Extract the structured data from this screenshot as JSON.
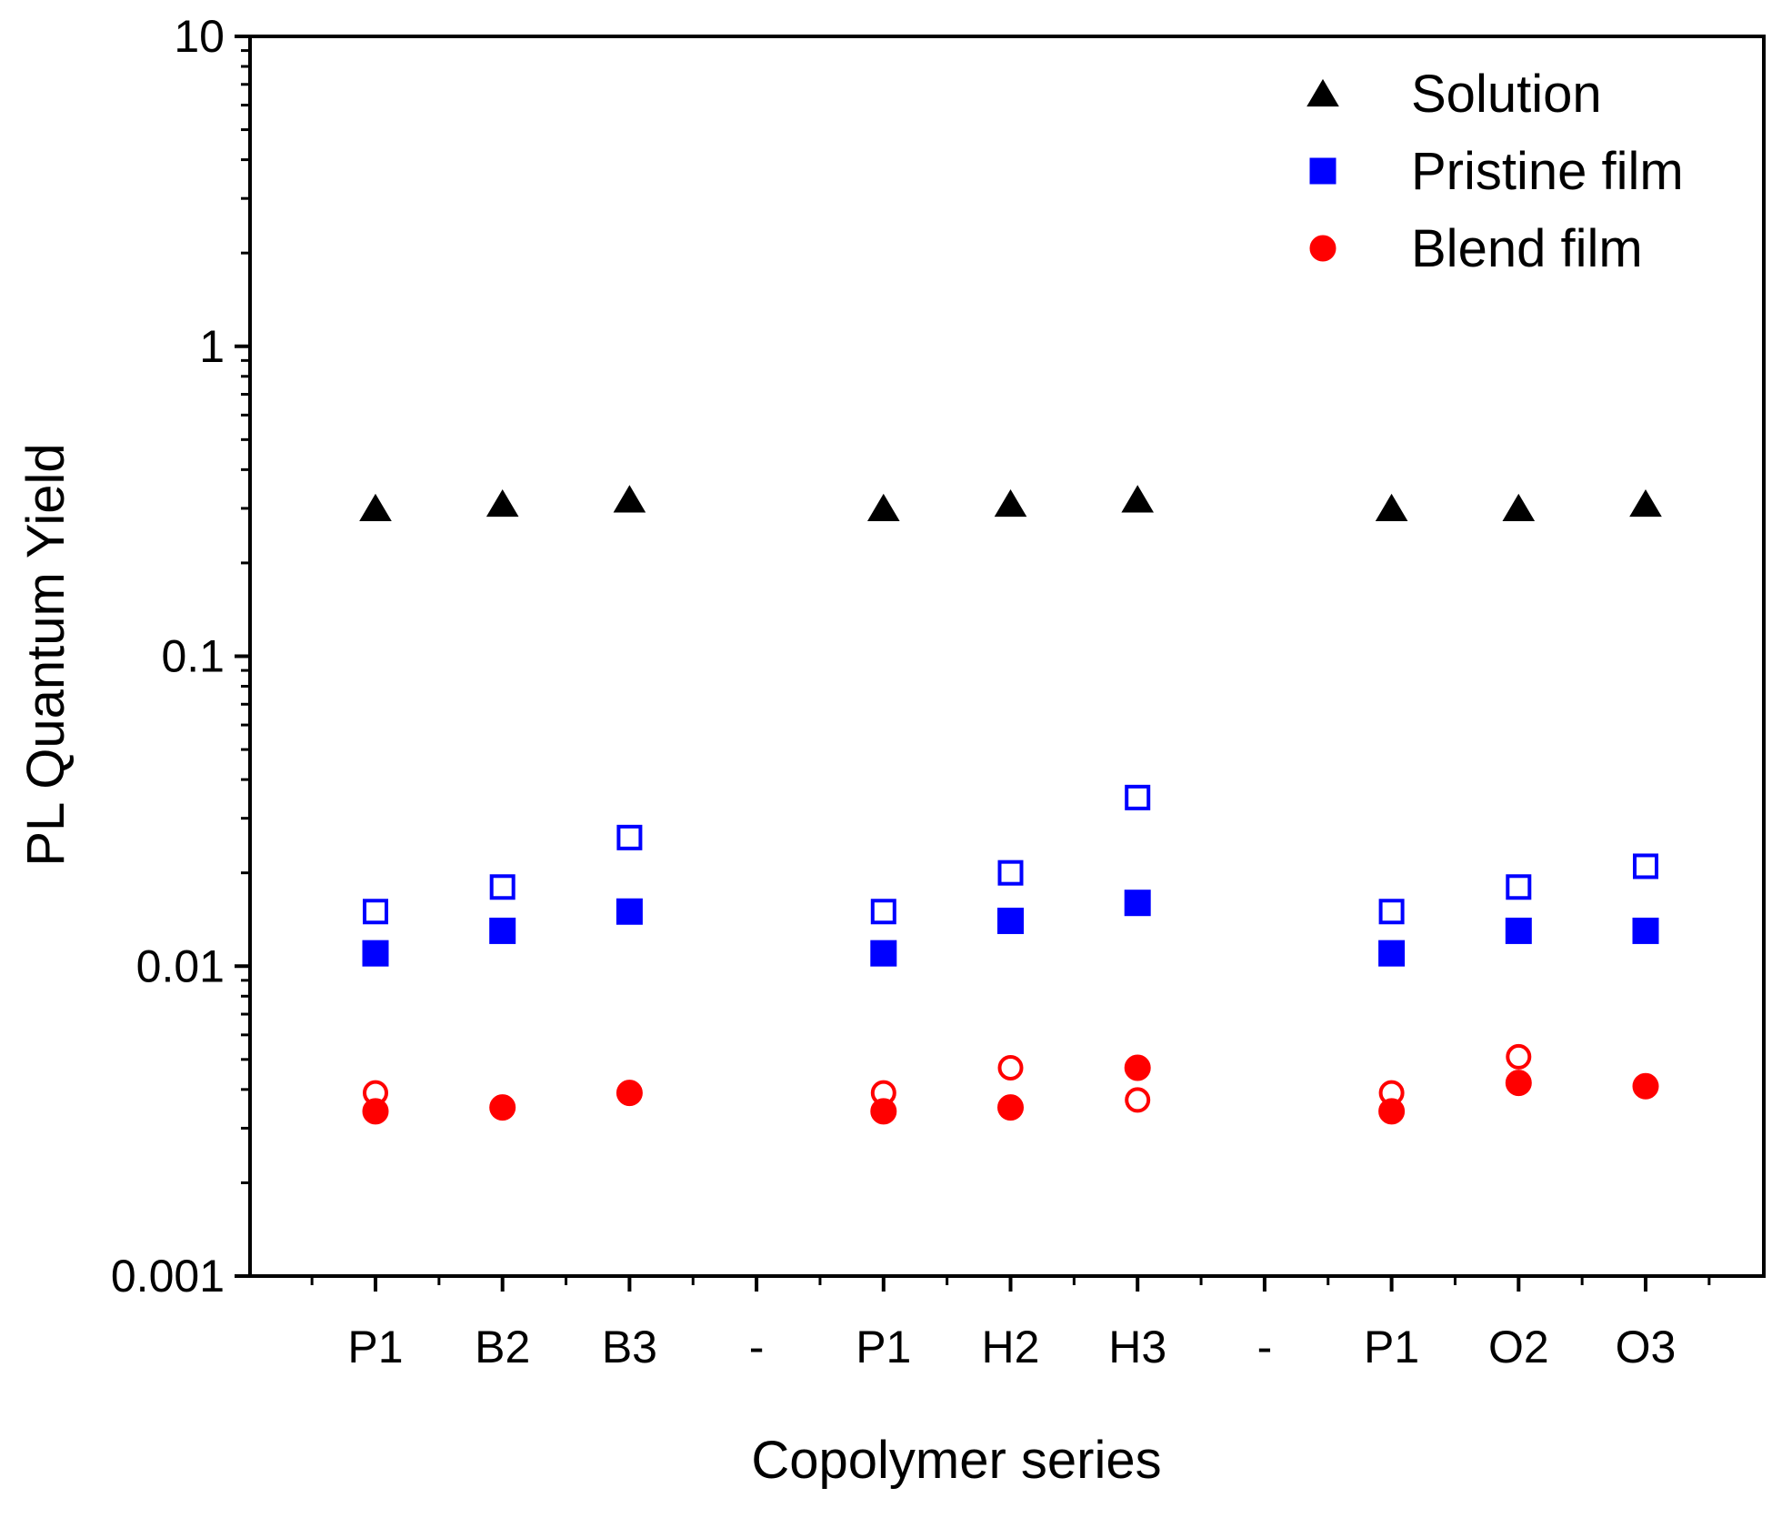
{
  "chart_data": {
    "type": "scatter",
    "title": "",
    "xlabel": "Copolymer series",
    "ylabel": "PL Quantum Yield",
    "yscale": "log",
    "ylim": [
      0.001,
      10
    ],
    "yticks": [
      {
        "value": 10,
        "label": "10"
      },
      {
        "value": 1,
        "label": "1"
      },
      {
        "value": 0.1,
        "label": "0.1"
      },
      {
        "value": 0.01,
        "label": "0.01"
      },
      {
        "value": 0.001,
        "label": "0.001"
      }
    ],
    "categories": [
      "P1",
      "B2",
      "B3",
      "-",
      "P1",
      "H2",
      "H3",
      "-",
      "P1",
      "O2",
      "O3"
    ],
    "legend_position": "top-right",
    "colors": {
      "solution": "#000000",
      "pristine": "#0000ff",
      "blend": "#ff0000",
      "axis": "#000000"
    },
    "series": [
      {
        "name": "Solution",
        "marker": "triangle",
        "filled": true,
        "color": "#000000",
        "in_legend": true,
        "values": [
          0.3,
          0.31,
          0.32,
          null,
          0.3,
          0.31,
          0.32,
          null,
          0.3,
          0.3,
          0.31
        ]
      },
      {
        "name": "Pristine film",
        "marker": "square",
        "filled": true,
        "color": "#0000ff",
        "in_legend": true,
        "values": [
          0.011,
          0.013,
          0.015,
          null,
          0.011,
          0.014,
          0.016,
          null,
          0.011,
          0.013,
          0.013
        ]
      },
      {
        "name": "Pristine film (open)",
        "marker": "square",
        "filled": false,
        "color": "#0000ff",
        "in_legend": false,
        "values": [
          0.015,
          0.018,
          0.026,
          null,
          0.015,
          0.02,
          0.035,
          null,
          0.015,
          0.018,
          0.021
        ]
      },
      {
        "name": "Blend film",
        "marker": "circle",
        "filled": true,
        "color": "#ff0000",
        "in_legend": true,
        "values": [
          0.0034,
          0.0035,
          0.0039,
          null,
          0.0034,
          0.0035,
          0.0047,
          null,
          0.0034,
          0.0042,
          0.0041
        ]
      },
      {
        "name": "Blend film (open)",
        "marker": "circle",
        "filled": false,
        "color": "#ff0000",
        "in_legend": false,
        "values": [
          0.0039,
          0.0035,
          0.0039,
          null,
          0.0039,
          0.0047,
          0.0037,
          null,
          0.0039,
          0.0051,
          0.0041
        ]
      }
    ]
  }
}
